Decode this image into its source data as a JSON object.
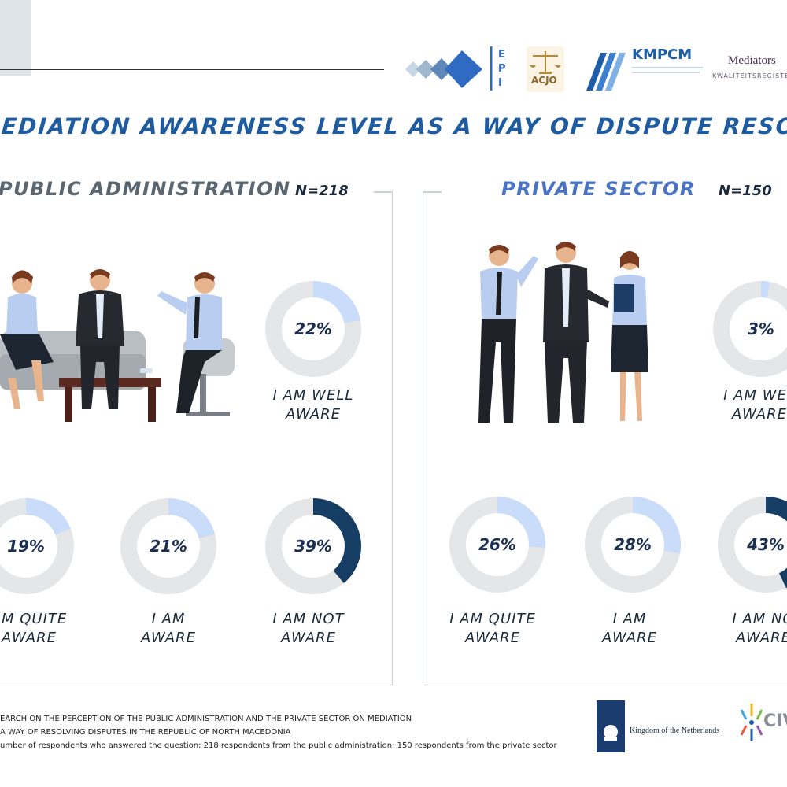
{
  "logos": {
    "epi_letters": "EPI",
    "acjo": "ACJO",
    "kmpcm": "KMPCM",
    "mediators": "Mediators",
    "kwaliteitsregister": "KWALITEITSREGISTER",
    "netherlands": "Kingdom of the Netherlands",
    "civ": "CIV"
  },
  "title": "EDIATION AWARENESS LEVEL AS A WAY OF DISPUTE RESOLUTION",
  "colors": {
    "title": "#1f5b9f",
    "public_title": "#5b6770",
    "private_title": "#4a73c4",
    "ring": "#e4e6e8",
    "light_segment": "#c9dcf9",
    "dark_segment": "#163d63"
  },
  "footnotes": [
    "EARCH ON THE PERCEPTION OF THE PUBLIC ADMINISTRATION AND THE PRIVATE SECTOR ON MEDIATION",
    "A WAY OF RESOLVING DISPUTES IN THE REPUBLIC OF NORTH MACEDONIA",
    "umber of respondents who answered the question; 218 respondents from the public administration; 150 respondents from the private sector"
  ],
  "chart_data": [
    {
      "type": "pie",
      "title": "PUBLIC ADMINISTRATION",
      "n_label": "N=218",
      "categories": [
        "I AM WELL AWARE",
        "I AM QUITE AWARE",
        "I AM AWARE",
        "I AM NOT AWARE"
      ],
      "values": [
        22,
        19,
        21,
        39
      ],
      "value_labels": [
        "22%",
        "19%",
        "21%",
        "39%"
      ],
      "label_lines": [
        [
          "I AM WELL",
          "AWARE"
        ],
        [
          "AM QUITE",
          "AWARE"
        ],
        [
          "I AM",
          "AWARE"
        ],
        [
          "I AM NOT",
          "AWARE"
        ]
      ],
      "highlight": [
        false,
        false,
        false,
        true
      ]
    },
    {
      "type": "pie",
      "title": "PRIVATE SECTOR",
      "n_label": "N=150",
      "categories": [
        "I AM WELL AWARE",
        "I AM QUITE AWARE",
        "I AM AWARE",
        "I AM NOT AWARE"
      ],
      "values": [
        3,
        26,
        28,
        43
      ],
      "value_labels": [
        "3%",
        "26%",
        "28%",
        "43%"
      ],
      "label_lines": [
        [
          "I AM WEL",
          "AWARE"
        ],
        [
          "I AM QUITE",
          "AWARE"
        ],
        [
          "I AM",
          "AWARE"
        ],
        [
          "I AM NO",
          "AWARE"
        ]
      ],
      "highlight": [
        false,
        false,
        false,
        true
      ]
    }
  ]
}
